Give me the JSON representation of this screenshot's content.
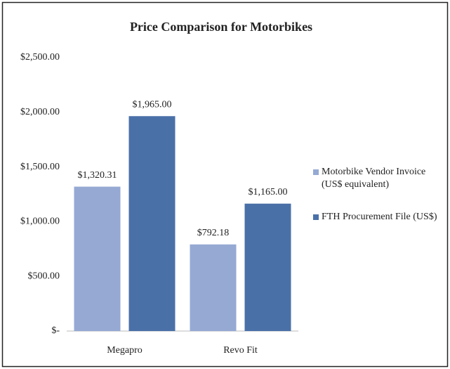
{
  "chart_data": {
    "type": "bar",
    "title": "Price Comparison for Motorbikes",
    "categories": [
      "Megapro",
      "Revo Fit"
    ],
    "series": [
      {
        "name": "Motorbike Vendor Invoice (US$ equivalent)",
        "color": "#95a9d3",
        "values": [
          1320.31,
          792.18
        ],
        "value_labels": [
          "$1,320.31",
          "$792.18"
        ]
      },
      {
        "name": "FTH Procurement File (US$)",
        "color": "#4a70a8",
        "values": [
          1965,
          1165
        ],
        "value_labels": [
          "$1,965.00",
          "$1,165.00"
        ]
      }
    ],
    "ylim": [
      0,
      2500
    ],
    "yticks": [
      {
        "value": 0,
        "label": "$-"
      },
      {
        "value": 500,
        "label": "$500.00"
      },
      {
        "value": 1000,
        "label": "$1,000.00"
      },
      {
        "value": 1500,
        "label": "$1,500.00"
      },
      {
        "value": 2000,
        "label": "$2,000.00"
      },
      {
        "value": 2500,
        "label": "$2,500.00"
      }
    ],
    "grid": false,
    "legend": "right"
  }
}
